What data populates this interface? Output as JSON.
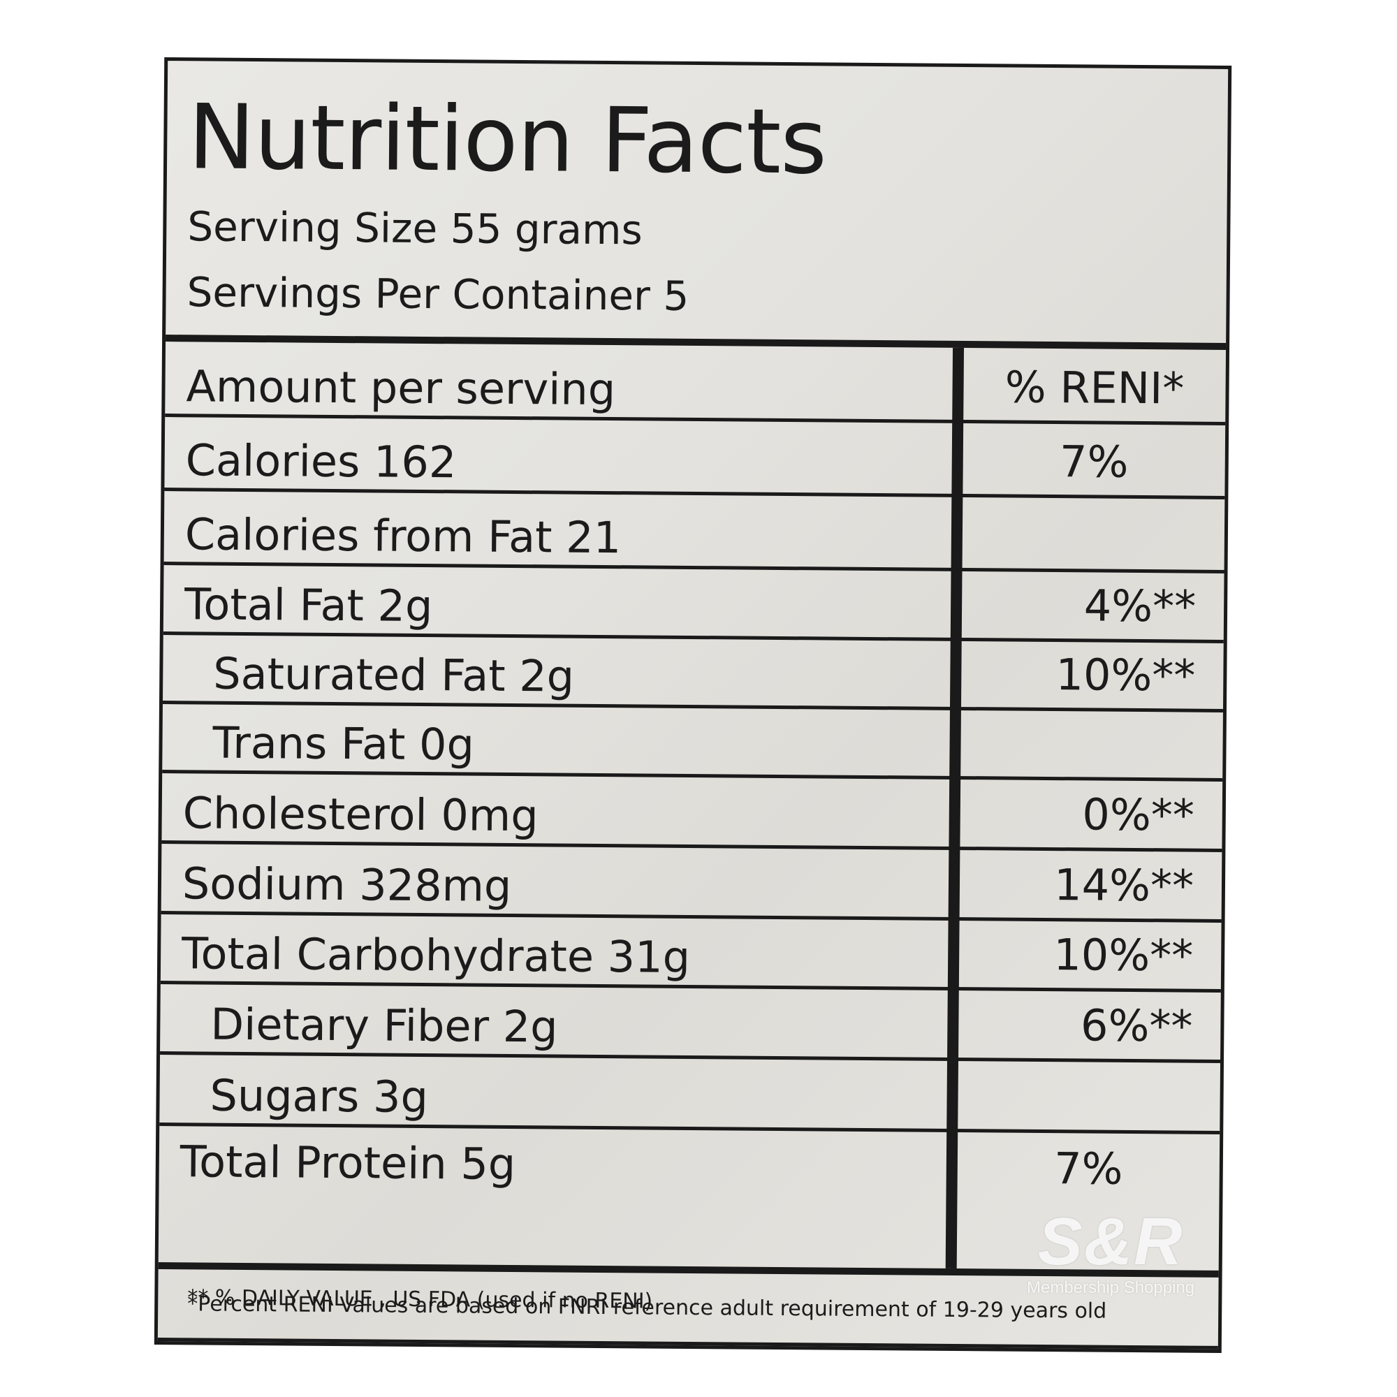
{
  "panel": {
    "title": "Nutrition Facts",
    "serving_size": "Serving Size 55 grams",
    "servings_per_container": "Servings Per Container 5"
  },
  "table": {
    "header": {
      "name": "Amount per serving",
      "pct": "% RENI*"
    },
    "rows": [
      {
        "name": "Calories 162",
        "pct": "7%"
      },
      {
        "name": "Calories from Fat 21",
        "pct": ""
      },
      {
        "name": "Total Fat 2g",
        "pct": "4%**"
      },
      {
        "name": "Saturated Fat 2g",
        "pct": "10%**"
      },
      {
        "name": "Trans Fat 0g",
        "pct": ""
      },
      {
        "name": "Cholesterol 0mg",
        "pct": "0%**"
      },
      {
        "name": "Sodium 328mg",
        "pct": "14%**"
      },
      {
        "name": "Total Carbohydrate 31g",
        "pct": "10%**"
      },
      {
        "name": "Dietary Fiber 2g",
        "pct": "6%**"
      },
      {
        "name": "Sugars 3g",
        "pct": ""
      },
      {
        "name": "Total Protein 5g",
        "pct": "7%"
      }
    ]
  },
  "footnotes": {
    "reni": "*Percent RENI Values are based on FNRI reference adult requirement of 19-29 years old",
    "daily_value": "** % DAILY VALUE , US FDA (used if no RENI)"
  },
  "watermark": {
    "brand": "S&R",
    "tagline": "Membership Shopping"
  }
}
